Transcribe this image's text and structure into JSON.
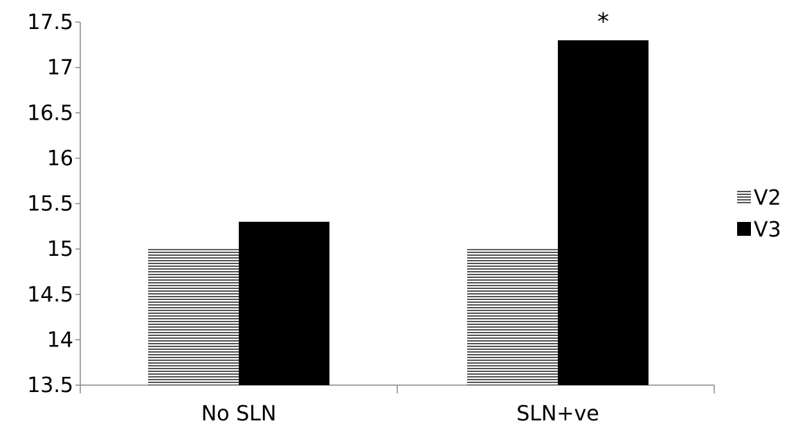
{
  "chart_data": {
    "type": "bar",
    "title": "",
    "xlabel": "",
    "ylabel": "",
    "categories": [
      "No SLN",
      "SLN+ve"
    ],
    "series": [
      {
        "name": "V2",
        "values": [
          15.0,
          15.0
        ],
        "color": "#555555",
        "pattern": "horizontal-stripes"
      },
      {
        "name": "V3",
        "values": [
          15.3,
          17.3
        ],
        "color": "#000000",
        "pattern": "solid"
      }
    ],
    "ylim": [
      13.5,
      17.5
    ],
    "yticks": [
      "13.5",
      "14",
      "14.5",
      "15",
      "15.5",
      "16",
      "16.5",
      "17",
      "17.5"
    ],
    "grid": false,
    "legend_position": "right",
    "annotations": [
      {
        "text": "*",
        "category_index": 1,
        "series_index": 1
      }
    ]
  }
}
